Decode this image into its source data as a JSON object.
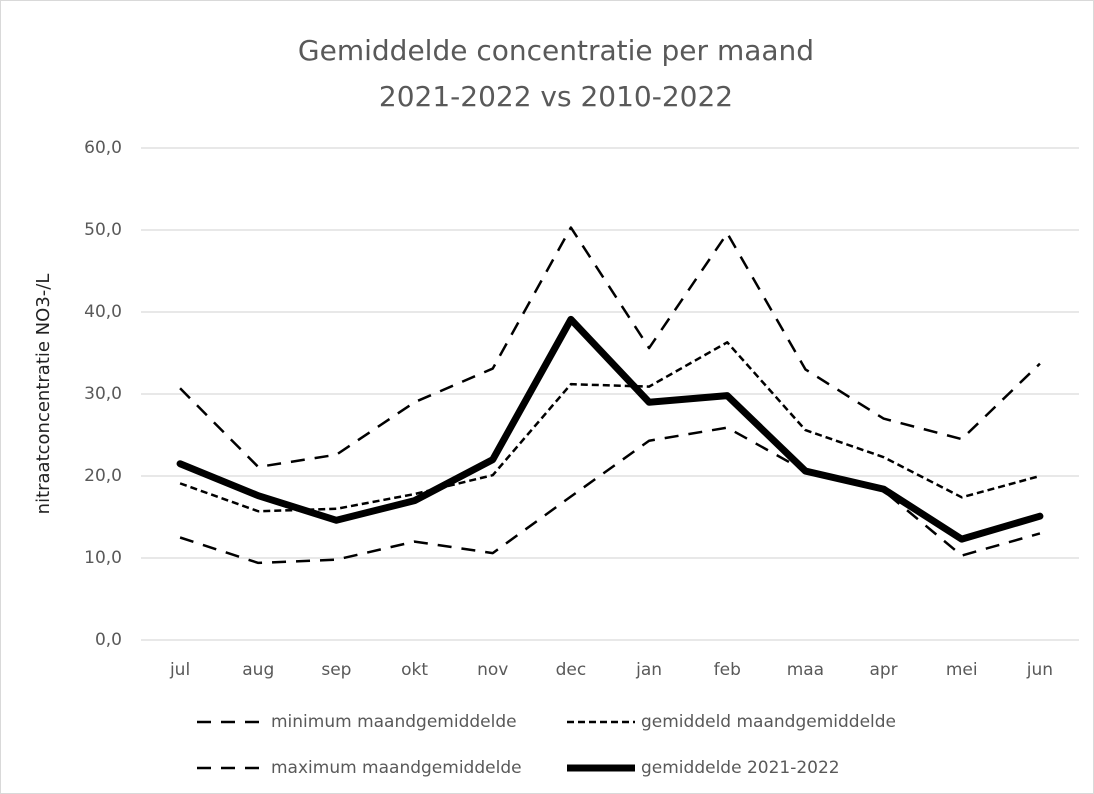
{
  "chart_data": {
    "type": "line",
    "title": "Gemiddelde concentratie per maand",
    "subtitle": "2021-2022 vs 2010-2022",
    "y_label": "nitraatconcentratie NO3-/L",
    "categories": [
      "jul",
      "aug",
      "sep",
      "okt",
      "nov",
      "dec",
      "jan",
      "feb",
      "maa",
      "apr",
      "mei",
      "jun"
    ],
    "series": [
      {
        "name": "minimum maandgemiddelde",
        "color": "#000000",
        "line_style": "long-dash",
        "values": [
          12.5,
          9.4,
          9.8,
          12.0,
          10.6,
          17.5,
          24.3,
          25.9,
          20.6,
          18.2,
          10.3,
          13.0
        ]
      },
      {
        "name": "gemiddeld maandgemiddelde",
        "color": "#000000",
        "line_style": "short-dash",
        "values": [
          19.1,
          15.7,
          16.0,
          17.8,
          20.1,
          31.2,
          30.9,
          36.3,
          25.6,
          22.3,
          17.4,
          20.0
        ]
      },
      {
        "name": "maximum maandgemiddelde",
        "color": "#000000",
        "line_style": "long-dash",
        "values": [
          30.7,
          21.1,
          22.6,
          29.0,
          33.1,
          50.3,
          35.6,
          49.6,
          33.0,
          27.0,
          24.5,
          33.7
        ]
      },
      {
        "name": "gemiddelde 2021-2022",
        "color": "#000000",
        "line_style": "solid",
        "values": [
          21.5,
          17.6,
          14.6,
          17.0,
          22.0,
          39.1,
          29.0,
          29.8,
          20.6,
          18.4,
          12.3,
          15.1
        ]
      }
    ],
    "ylim": [
      0,
      60
    ],
    "yticks": [
      {
        "value": 0,
        "label": "0,0"
      },
      {
        "value": 10,
        "label": "10,0"
      },
      {
        "value": 20,
        "label": "20,0"
      },
      {
        "value": 30,
        "label": "30,0"
      },
      {
        "value": 40,
        "label": "40,0"
      },
      {
        "value": 50,
        "label": "50,0"
      },
      {
        "value": 60,
        "label": "60,0"
      }
    ],
    "grid": true
  }
}
